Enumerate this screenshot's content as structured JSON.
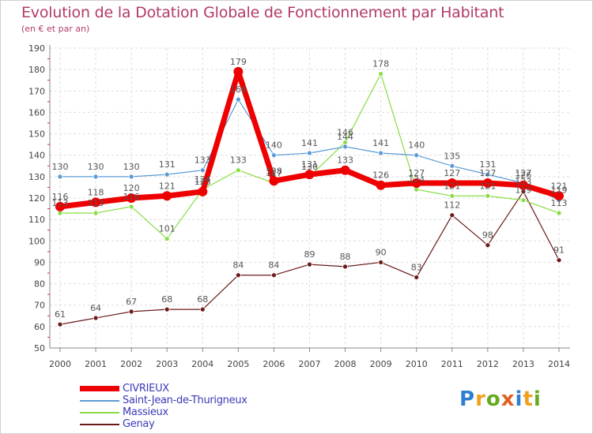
{
  "chart_data": {
    "type": "line",
    "title": "Evolution de la Dotation Globale de Fonctionnement par Habitant",
    "subtitle": "(en € et par an)",
    "xlabel": "",
    "ylabel": "",
    "categories": [
      "2000",
      "2001",
      "2002",
      "2003",
      "2004",
      "2005",
      "2006",
      "2007",
      "2008",
      "2009",
      "2010",
      "2011",
      "2012",
      "2013",
      "2014"
    ],
    "ylim": [
      50,
      190
    ],
    "yticks": [
      50,
      60,
      70,
      80,
      90,
      100,
      110,
      120,
      130,
      140,
      150,
      160,
      170,
      180,
      190
    ],
    "grid": true,
    "legend_position": "bottom-left",
    "series": [
      {
        "name": "CIVRIEUX",
        "color": "#ee0000",
        "values": [
          116,
          118,
          120,
          121,
          123,
          179,
          128,
          131,
          133,
          126,
          127,
          127,
          127,
          126,
          121
        ]
      },
      {
        "name": "Saint-Jean-de-Thurigneux",
        "color": "#5b9bd5",
        "values": [
          130,
          130,
          130,
          131,
          133,
          166,
          140,
          141,
          144,
          141,
          140,
          135,
          131,
          127,
          119
        ]
      },
      {
        "name": "Massieux",
        "color": "#88dd44",
        "values": [
          113,
          113,
          116,
          101,
          124,
          133,
          127,
          130,
          146,
          178,
          124,
          121,
          121,
          119,
          113
        ]
      },
      {
        "name": "Genay",
        "color": "#6b1a1a",
        "values": [
          61,
          64,
          67,
          68,
          68,
          84,
          84,
          89,
          88,
          90,
          83,
          112,
          98,
          123,
          91
        ]
      }
    ]
  },
  "logo": {
    "letters": [
      "P",
      "r",
      "o",
      "x",
      "i",
      "t",
      "i"
    ],
    "colors": [
      "#2f7fd0",
      "#f0a020",
      "#66aa22",
      "#e06020",
      "#2f7fd0",
      "#f0a020",
      "#66aa22"
    ]
  }
}
